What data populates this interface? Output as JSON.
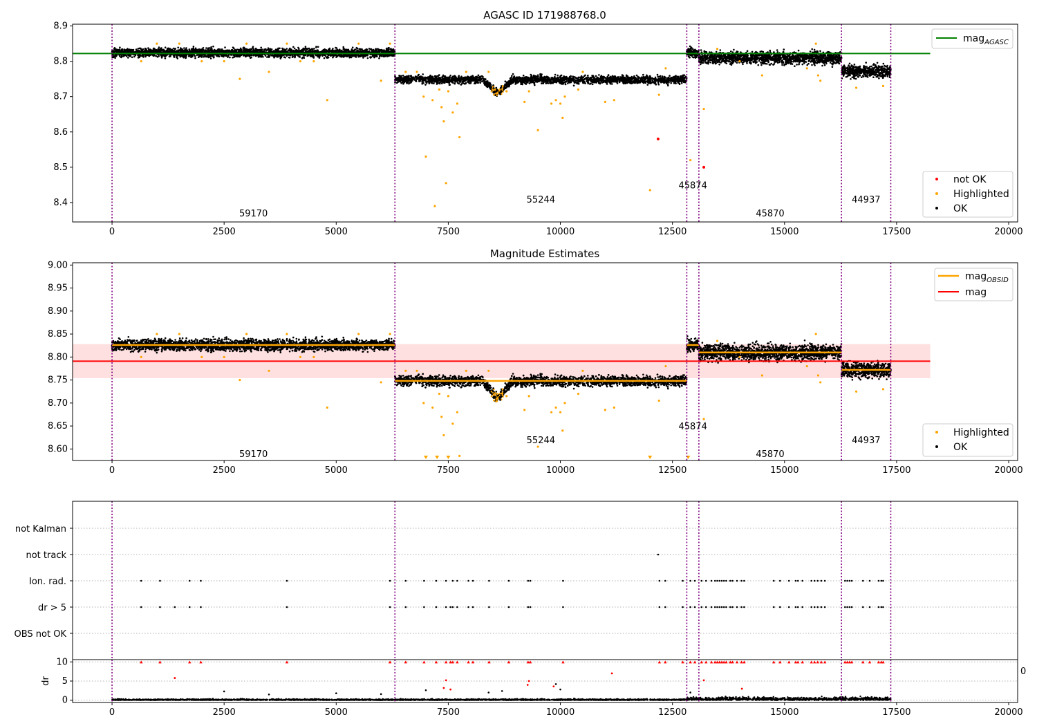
{
  "chart_data": [
    {
      "type": "scatter",
      "title": "AGASC ID 171988768.0",
      "xlim": [
        -880,
        20200
      ],
      "ylim": [
        8.345,
        8.905
      ],
      "xticks": [
        0,
        2500,
        5000,
        7500,
        10000,
        12500,
        15000,
        17500,
        20000
      ],
      "yticks": [
        8.4,
        8.5,
        8.6,
        8.7,
        8.8,
        8.9
      ],
      "grid": false,
      "legend_upper": {
        "position": "top-right",
        "entries": [
          {
            "label": "mag",
            "sub": "AGASC",
            "color": "#008000"
          }
        ]
      },
      "legend_lower": {
        "position": "bottom-right",
        "entries": [
          {
            "label": "not OK",
            "color": "#ff0000"
          },
          {
            "label": "Highlighted",
            "color": "#ffa500"
          },
          {
            "label": "OK",
            "color": "#000000"
          }
        ]
      },
      "hlines": [
        {
          "y": 8.822,
          "x0": -880,
          "x1": 18250,
          "color": "#008000",
          "width": 2
        }
      ],
      "vlines": [
        0,
        6310,
        12820,
        13090,
        16270,
        17370
      ],
      "obsids": [
        {
          "label": "59170",
          "x": 3155,
          "y": 8.37
        },
        {
          "label": "55244",
          "x": 9565,
          "y": 8.41
        },
        {
          "label": "45874",
          "x": 12955,
          "y": 8.45
        },
        {
          "label": "45870",
          "x": 14680,
          "y": 8.37
        },
        {
          "label": "44937",
          "x": 16820,
          "y": 8.41
        }
      ],
      "segments": [
        {
          "x0": 0,
          "x1": 6310,
          "mean": 8.824,
          "spread": 0.012
        },
        {
          "x0": 6310,
          "x1": 12820,
          "mean": 8.748,
          "spread": 0.011
        },
        {
          "x0": 12820,
          "x1": 13090,
          "mean": 8.824,
          "spread": 0.013
        },
        {
          "x0": 13090,
          "x1": 16270,
          "mean": 8.81,
          "spread": 0.017
        },
        {
          "x0": 16270,
          "x1": 17370,
          "mean": 8.772,
          "spread": 0.017
        }
      ],
      "dip": {
        "x_center": 8600,
        "width": 150,
        "depth": 0.035
      },
      "highlighted": [
        [
          650,
          8.8
        ],
        [
          1000,
          8.85
        ],
        [
          1500,
          8.85
        ],
        [
          2000,
          8.8
        ],
        [
          2500,
          8.8
        ],
        [
          2850,
          8.75
        ],
        [
          3000,
          8.85
        ],
        [
          3500,
          8.77
        ],
        [
          3900,
          8.85
        ],
        [
          4200,
          8.8
        ],
        [
          4500,
          8.8
        ],
        [
          4800,
          8.69
        ],
        [
          5500,
          8.85
        ],
        [
          6000,
          8.745
        ],
        [
          6200,
          8.85
        ],
        [
          6550,
          8.77
        ],
        [
          6800,
          8.77
        ],
        [
          6950,
          8.7
        ],
        [
          7000,
          8.53
        ],
        [
          7150,
          8.69
        ],
        [
          7200,
          8.39
        ],
        [
          7300,
          8.72
        ],
        [
          7350,
          8.67
        ],
        [
          7400,
          8.63
        ],
        [
          7450,
          8.455
        ],
        [
          7500,
          8.715
        ],
        [
          7600,
          8.655
        ],
        [
          7700,
          8.68
        ],
        [
          7750,
          8.585
        ],
        [
          7900,
          8.77
        ],
        [
          8400,
          8.77
        ],
        [
          8800,
          8.715
        ],
        [
          9200,
          8.685
        ],
        [
          9300,
          8.715
        ],
        [
          9500,
          8.605
        ],
        [
          9800,
          8.68
        ],
        [
          9900,
          8.69
        ],
        [
          10000,
          8.68
        ],
        [
          10050,
          8.64
        ],
        [
          10100,
          8.7
        ],
        [
          10400,
          8.72
        ],
        [
          10500,
          8.77
        ],
        [
          11000,
          8.685
        ],
        [
          11200,
          8.69
        ],
        [
          12000,
          8.435
        ],
        [
          12200,
          8.705
        ],
        [
          12350,
          8.78
        ],
        [
          12900,
          8.52
        ],
        [
          13200,
          8.665
        ],
        [
          13500,
          8.835
        ],
        [
          14000,
          8.8
        ],
        [
          14500,
          8.76
        ],
        [
          15500,
          8.78
        ],
        [
          15700,
          8.85
        ],
        [
          15750,
          8.76
        ],
        [
          15800,
          8.745
        ],
        [
          16600,
          8.725
        ],
        [
          17200,
          8.73
        ]
      ],
      "notok": [
        [
          12180,
          8.58
        ],
        [
          13200,
          8.5
        ]
      ],
      "xlabel": "",
      "ylabel": ""
    },
    {
      "type": "scatter",
      "title": "Magnitude Estimates",
      "xlim": [
        -880,
        20200
      ],
      "ylim": [
        8.575,
        9.005
      ],
      "xticks": [
        0,
        2500,
        5000,
        7500,
        10000,
        12500,
        15000,
        17500,
        20000
      ],
      "yticks": [
        8.6,
        8.65,
        8.7,
        8.75,
        8.8,
        8.85,
        8.9,
        8.95,
        9.0
      ],
      "grid": false,
      "legend_upper": {
        "position": "top-right",
        "entries": [
          {
            "label": "mag",
            "sub": "OBSID",
            "color": "#ffa500"
          },
          {
            "label": "mag",
            "sub": "",
            "color": "#ff0000"
          }
        ]
      },
      "legend_lower": {
        "position": "bottom-right",
        "entries": [
          {
            "label": "Highlighted",
            "color": "#ffa500"
          },
          {
            "label": "OK",
            "color": "#000000"
          }
        ]
      },
      "mag": 8.791,
      "mag_band": [
        8.754,
        8.828
      ],
      "vlines": [
        0,
        6310,
        12820,
        13090,
        16270,
        17370
      ],
      "obsids": [
        {
          "label": "59170",
          "x": 3155,
          "y": 8.59
        },
        {
          "label": "55244",
          "x": 9565,
          "y": 8.62
        },
        {
          "label": "45874",
          "x": 12955,
          "y": 8.65
        },
        {
          "label": "45870",
          "x": 14680,
          "y": 8.59
        },
        {
          "label": "44937",
          "x": 16820,
          "y": 8.62
        }
      ],
      "obsid_mags": [
        {
          "x0": 0,
          "x1": 6310,
          "mag": 8.826
        },
        {
          "x0": 6310,
          "x1": 12820,
          "mag": 8.748
        },
        {
          "x0": 12820,
          "x1": 13090,
          "mag": 8.826
        },
        {
          "x0": 13090,
          "x1": 16270,
          "mag": 8.81
        },
        {
          "x0": 16270,
          "x1": 17370,
          "mag": 8.772
        }
      ],
      "below_range": [
        7000,
        7250,
        7500,
        12000,
        12850
      ],
      "xlabel": "",
      "ylabel": ""
    },
    {
      "type": "scatter",
      "title": "",
      "xlim": [
        -880,
        20200
      ],
      "flag_labels": [
        "not Kalman",
        "not track",
        "Ion. rad.",
        "dr > 5",
        "OBS not OK"
      ],
      "flag_x": {
        "not Kalman": [],
        "not track": [
          12180
        ],
        "Ion. rad.": [
          650,
          1070,
          1730,
          1980,
          3900,
          6200,
          6550,
          6960,
          7230,
          7450,
          7600,
          7700,
          7950,
          8050,
          8410,
          8850,
          9280,
          9330,
          10060,
          12210,
          12340,
          12730,
          12900,
          13000,
          13150,
          13250,
          13370,
          13450,
          13500,
          13550,
          13600,
          13650,
          13700,
          13790,
          13840,
          13940,
          14040,
          14100,
          14760,
          14900,
          15100,
          15250,
          15300,
          15400,
          15600,
          15670,
          15740,
          15820,
          15900,
          16350,
          16400,
          16450,
          16500,
          16750,
          16900,
          17100,
          17160,
          17200
        ],
        "dr > 5": [
          650,
          1070,
          1400,
          1730,
          1980,
          3900,
          6200,
          6550,
          6960,
          7230,
          7450,
          7550,
          7600,
          7700,
          7950,
          8050,
          8410,
          8850,
          9280,
          9330,
          10060,
          12210,
          12340,
          12730,
          12900,
          13000,
          13150,
          13250,
          13370,
          13450,
          13500,
          13550,
          13600,
          13650,
          13700,
          13790,
          13840,
          13940,
          14040,
          14100,
          14760,
          14900,
          15100,
          15250,
          15300,
          15400,
          15600,
          15670,
          15740,
          15820,
          15900,
          16350,
          16400,
          16450,
          16500,
          16750,
          16900,
          17100,
          17160,
          17200
        ],
        "OBS not OK": []
      },
      "vlines": [
        0,
        6310,
        12820,
        13090,
        16270,
        17370
      ]
    },
    {
      "type": "scatter",
      "title": "",
      "xlim": [
        -880,
        20200
      ],
      "ylim": [
        -0.6,
        10.6
      ],
      "xticks": [
        0,
        2500,
        5000,
        7500,
        10000,
        12500,
        15000,
        17500,
        20000
      ],
      "yticks": [
        0,
        5,
        10
      ],
      "ylabel": "dr",
      "xlabel": "",
      "corner_label": "0",
      "vlines": [
        0,
        6310,
        12820,
        13090,
        16270,
        17370
      ],
      "clipped_red_x": [
        650,
        1070,
        1730,
        1980,
        3900,
        6200,
        6550,
        6960,
        7230,
        7450,
        7550,
        7600,
        7700,
        7950,
        8050,
        8410,
        8850,
        9280,
        9330,
        10060,
        12210,
        12340,
        12730,
        12900,
        13000,
        13150,
        13250,
        13370,
        13450,
        13500,
        13550,
        13600,
        13650,
        13700,
        13790,
        13840,
        13940,
        14040,
        14100,
        14760,
        14900,
        15100,
        15250,
        15300,
        15400,
        15600,
        15670,
        15740,
        15820,
        15900,
        16350,
        16400,
        16450,
        16500,
        16750,
        16900,
        17100,
        17160,
        17200
      ],
      "red_points": [
        [
          1400,
          5.8
        ],
        [
          7450,
          5.2
        ],
        [
          9300,
          5.0
        ],
        [
          11150,
          7.0
        ],
        [
          13200,
          5.2
        ],
        [
          7400,
          3.2
        ],
        [
          7550,
          2.8
        ],
        [
          9270,
          4.0
        ],
        [
          9850,
          3.6
        ],
        [
          14050,
          3.0
        ]
      ],
      "black_points": [
        [
          2500,
          2.3
        ],
        [
          5000,
          1.8
        ],
        [
          7000,
          2.6
        ],
        [
          8400,
          2.0
        ],
        [
          8700,
          2.4
        ],
        [
          9900,
          4.2
        ],
        [
          10000,
          2.8
        ],
        [
          3500,
          1.5
        ],
        [
          6000,
          1.6
        ],
        [
          12900,
          2.0
        ]
      ]
    }
  ]
}
